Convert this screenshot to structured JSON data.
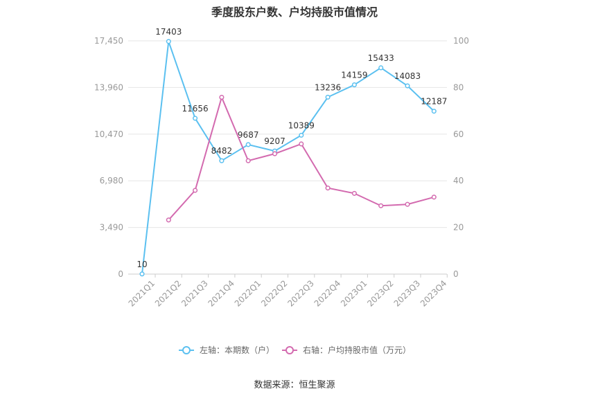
{
  "chart_data": {
    "type": "line",
    "title": "季度股东户数、户均持股市值情况",
    "categories": [
      "2021Q1",
      "2021Q2",
      "2021Q3",
      "2021Q4",
      "2022Q1",
      "2022Q2",
      "2022Q3",
      "2022Q4",
      "2023Q1",
      "2023Q2",
      "2023Q3",
      "2023Q4"
    ],
    "y_left": {
      "ticks": [
        "0",
        "3,490",
        "6,980",
        "10,470",
        "13,960",
        "17,450"
      ],
      "range": [
        0,
        17450
      ]
    },
    "y_right": {
      "ticks": [
        "0",
        "20",
        "40",
        "60",
        "80",
        "100"
      ],
      "range": [
        0,
        100
      ]
    },
    "series": [
      {
        "name": "左轴：本期数（户）",
        "axis": "left",
        "color": "#5bc0f0",
        "values": [
          10,
          17403,
          11656,
          8482,
          9687,
          9207,
          10389,
          13236,
          14159,
          15433,
          14083,
          12187
        ],
        "labels": [
          "10",
          "17403",
          "11656",
          "8482",
          "9687",
          "9207",
          "10389",
          "13236",
          "14159",
          "15433",
          "14083",
          "12187"
        ]
      },
      {
        "name": "右轴：户均持股市值（万元）",
        "axis": "right",
        "color": "#d36aaf",
        "values": [
          null,
          23.2,
          35.9,
          75.8,
          48.6,
          51.6,
          55.8,
          36.9,
          34.6,
          29.3,
          29.9,
          33.0
        ]
      }
    ],
    "grid": true,
    "legend_position": "bottom"
  },
  "source": "数据来源：恒生聚源"
}
